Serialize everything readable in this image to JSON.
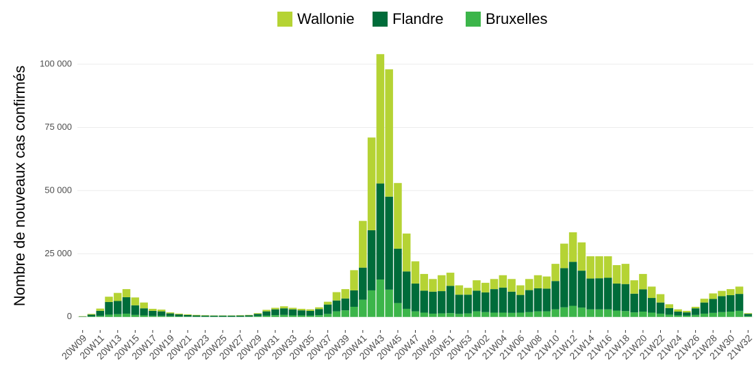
{
  "chart_data": {
    "type": "stacked_bar",
    "y_label": "Nombre de nouveaux cas confirmés",
    "categories": [
      "20W09",
      null,
      "20W11",
      null,
      "20W13",
      null,
      "20W15",
      null,
      "20W17",
      null,
      "20W19",
      null,
      "20W21",
      null,
      "20W23",
      null,
      "20W25",
      null,
      "20W27",
      null,
      "20W29",
      null,
      "20W31",
      null,
      "20W33",
      null,
      "20W35",
      null,
      "20W37",
      null,
      "20W39",
      null,
      "20W41",
      null,
      "20W43",
      null,
      "20W45",
      null,
      "20W47",
      null,
      "20W49",
      null,
      "20W51",
      null,
      "20W53",
      null,
      "21W02",
      null,
      "21W04",
      null,
      "21W06",
      null,
      "21W08",
      null,
      "21W10",
      null,
      "21W12",
      null,
      "21W14",
      null,
      "21W16",
      null,
      "21W18",
      null,
      "21W20",
      null,
      "21W22",
      null,
      "21W24",
      null,
      "21W26",
      null,
      "21W28",
      null,
      "21W30",
      null,
      "21W32"
    ],
    "series": [
      {
        "name": "Wallonie",
        "color": "#b5d334",
        "values": [
          130,
          300,
          900,
          2100,
          3200,
          3200,
          3100,
          2300,
          800,
          700,
          400,
          300,
          250,
          200,
          150,
          100,
          100,
          100,
          150,
          150,
          300,
          600,
          600,
          800,
          600,
          600,
          600,
          700,
          1100,
          3300,
          3700,
          8000,
          18500,
          36700,
          51200,
          50400,
          26000,
          15000,
          8800,
          6600,
          5000,
          6300,
          5200,
          3700,
          2700,
          4100,
          3800,
          4000,
          4900,
          5000,
          3800,
          4400,
          5200,
          4800,
          6800,
          9700,
          11700,
          11200,
          8800,
          8700,
          8500,
          7300,
          8000,
          5300,
          6100,
          4500,
          3300,
          1500,
          900,
          600,
          600,
          1500,
          2200,
          2100,
          2400,
          2900,
          300
        ]
      },
      {
        "name": "Flandre",
        "color": "#006c3a",
        "values": [
          150,
          700,
          2000,
          5000,
          5200,
          6500,
          3800,
          2800,
          2000,
          1800,
          1100,
          800,
          600,
          500,
          450,
          400,
          400,
          400,
          450,
          500,
          900,
          1700,
          2300,
          2600,
          2400,
          2000,
          1900,
          2400,
          3700,
          4300,
          4700,
          6500,
          12700,
          23800,
          38000,
          36800,
          21500,
          14800,
          11000,
          8700,
          8700,
          8800,
          10800,
          7600,
          7400,
          8200,
          7800,
          9300,
          9900,
          8400,
          7000,
          8700,
          9100,
          9000,
          11200,
          15500,
          17400,
          14600,
          12200,
          12300,
          12500,
          10700,
          10700,
          7400,
          8800,
          5800,
          4400,
          2600,
          1500,
          1300,
          2600,
          4400,
          5500,
          6300,
          6500,
          6700,
          900
        ]
      },
      {
        "name": "Bruxelles",
        "color": "#3cb54a",
        "values": [
          20,
          200,
          400,
          900,
          1100,
          1300,
          800,
          600,
          400,
          400,
          300,
          200,
          150,
          100,
          100,
          100,
          100,
          100,
          100,
          150,
          300,
          500,
          700,
          800,
          600,
          600,
          500,
          700,
          1200,
          2200,
          2600,
          4000,
          6800,
          10500,
          14800,
          10800,
          5500,
          3200,
          2200,
          1700,
          1300,
          1400,
          1500,
          1200,
          1400,
          2200,
          1900,
          1700,
          1700,
          1600,
          1700,
          1900,
          2200,
          2200,
          3000,
          3800,
          4400,
          3700,
          3000,
          3000,
          3000,
          2500,
          2300,
          1800,
          2100,
          1700,
          1300,
          900,
          600,
          500,
          800,
          1300,
          1600,
          1900,
          2100,
          2400,
          300
        ]
      }
    ],
    "ylim": [
      -5200,
      109200
    ],
    "yticks": [
      0,
      {
        "value": 25000,
        "label": "25 000"
      },
      {
        "value": 50000,
        "label": "50 000"
      },
      {
        "value": 75000,
        "label": "75 000"
      },
      {
        "value": 100000,
        "label": "100 000"
      }
    ],
    "grid": true,
    "legend": "top"
  }
}
